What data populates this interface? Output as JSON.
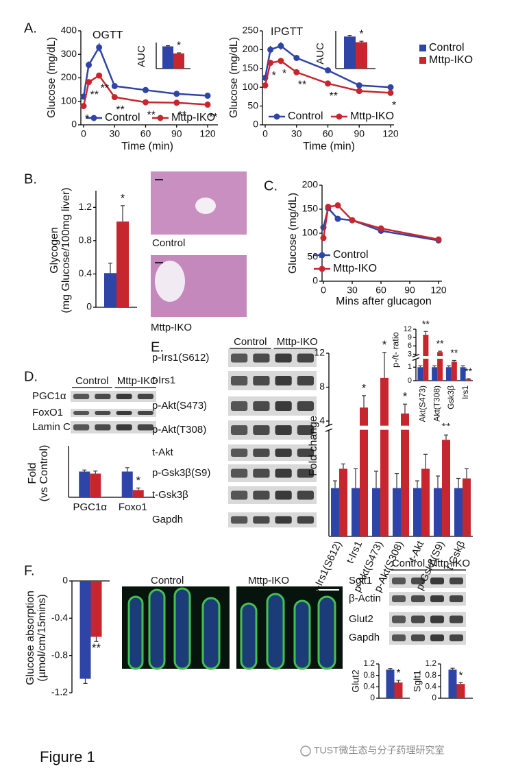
{
  "labels": {
    "panels": [
      "A.",
      "B.",
      "C.",
      "D.",
      "E.",
      "F."
    ],
    "histology": [
      "Control",
      "Mttp-IKO"
    ],
    "d_blot": {
      "groups": [
        "Control",
        "Mttp-IKO"
      ],
      "rows": [
        "PGC1α",
        "FoxO1",
        "Lamin C"
      ]
    },
    "e_blot": {
      "groups": [
        "Control",
        "Mttp-IKO"
      ],
      "rows": [
        "p-Irs1(S612)",
        "t-Irs1",
        "p-Akt(S473)",
        "p-Akt(T308)",
        "t-Akt",
        "p-Gsk3β(S9)",
        "t-Gsk3β",
        "Gapdh"
      ]
    },
    "f_images": [
      "Control",
      "Mttp-IKO"
    ],
    "f_blot": {
      "groups": [
        "Control",
        "Mttp-IKO"
      ],
      "rows": [
        "Sglt1",
        "β-Actin",
        "Glut2",
        "Gapdh"
      ]
    },
    "caption": "Figure 1",
    "watermark": "TUST微生态与分子药理研究室"
  },
  "chart_data": [
    {
      "type": "line",
      "title": "OGTT",
      "xlabel": "Time (min)",
      "ylabel": "Glucose (mg/dL)",
      "x": [
        0,
        5,
        15,
        30,
        60,
        90,
        120
      ],
      "xlim": [
        0,
        120
      ],
      "xticks": [
        0,
        30,
        60,
        90,
        120
      ],
      "ylim": [
        0,
        400
      ],
      "yticks": [
        0,
        100,
        200,
        300,
        400
      ],
      "legend": "bottom",
      "series": [
        {
          "name": "Control",
          "color": "#2e44a6",
          "values": [
            120,
            255,
            330,
            165,
            148,
            132,
            124
          ],
          "errors": [
            8,
            15,
            18,
            8,
            6,
            6,
            6
          ]
        },
        {
          "name": "Mttp-IKO",
          "color": "#c8262f",
          "values": [
            80,
            182,
            210,
            118,
            96,
            94,
            86
          ],
          "errors": [
            6,
            10,
            12,
            6,
            5,
            5,
            5
          ],
          "annotations": [
            "*",
            "**",
            "**",
            "**",
            "**",
            "**",
            "**"
          ]
        }
      ]
    },
    {
      "type": "bar",
      "ylabel": "AUC",
      "categories": [
        null
      ],
      "ylim": [
        0,
        24
      ],
      "legend": "figure",
      "series": [
        {
          "name": "Control",
          "color": "#2e44a6",
          "values": [
            20.5
          ],
          "errors": [
            0.6
          ]
        },
        {
          "name": "Mttp-IKO",
          "color": "#c8262f",
          "values": [
            14
          ],
          "errors": [
            0.5
          ],
          "annotations": [
            "*"
          ]
        }
      ]
    },
    {
      "type": "line",
      "title": "IPGTT",
      "xlabel": "Time (min)",
      "ylabel": "Glucose (mg/dL)",
      "x": [
        0,
        5,
        15,
        30,
        60,
        90,
        120
      ],
      "xlim": [
        0,
        120
      ],
      "xticks": [
        0,
        30,
        60,
        90,
        120
      ],
      "ylim": [
        0,
        250
      ],
      "yticks": [
        0,
        50,
        100,
        150,
        200,
        250
      ],
      "legend": "bottom",
      "series": [
        {
          "name": "Control",
          "color": "#2e44a6",
          "values": [
            125,
            200,
            210,
            178,
            145,
            105,
            100
          ],
          "errors": [
            8,
            10,
            10,
            7,
            6,
            5,
            5
          ]
        },
        {
          "name": "Mttp-IKO",
          "color": "#c8262f",
          "values": [
            105,
            165,
            170,
            140,
            110,
            90,
            85
          ],
          "errors": [
            6,
            8,
            8,
            6,
            5,
            5,
            5
          ],
          "annotations": [
            null,
            "*",
            "*",
            "**",
            "**",
            null,
            "*"
          ]
        }
      ]
    },
    {
      "type": "bar",
      "ylabel": "AUC",
      "categories": [
        null
      ],
      "ylim": [
        0,
        20
      ],
      "series": [
        {
          "name": "Control",
          "color": "#2e44a6",
          "values": [
            17
          ],
          "errors": [
            0.6
          ]
        },
        {
          "name": "Mttp-IKO",
          "color": "#c8262f",
          "values": [
            14
          ],
          "errors": [
            0.5
          ],
          "annotations": [
            "*"
          ]
        }
      ]
    },
    {
      "type": "bar",
      "ylabel": [
        "Glycogen",
        "(mg Glucose/100mg liver)"
      ],
      "categories": [
        null
      ],
      "ylim": [
        0,
        1.4
      ],
      "yticks": [
        0,
        0.4,
        0.8,
        1.2
      ],
      "series": [
        {
          "name": "Control",
          "color": "#2e44a6",
          "values": [
            0.41
          ],
          "errors": [
            0.12
          ]
        },
        {
          "name": "Mttp-IKO",
          "color": "#c8262f",
          "values": [
            1.03
          ],
          "errors": [
            0.19
          ],
          "annotations": [
            "*"
          ]
        }
      ]
    },
    {
      "type": "line",
      "xlabel": "Mins after glucagon",
      "ylabel": "Glucose (mg/dL)",
      "x": [
        0,
        5,
        15,
        30,
        60,
        120
      ],
      "xlim": [
        0,
        120
      ],
      "xticks": [
        0,
        30,
        60,
        90,
        120
      ],
      "ylim": [
        0,
        200
      ],
      "yticks": [
        0,
        50,
        100,
        150,
        200
      ],
      "legend": "inside",
      "series": [
        {
          "name": "Control",
          "color": "#2e44a6",
          "values": [
            112,
            152,
            130,
            127,
            105,
            85
          ]
        },
        {
          "name": "Mttp-IKO",
          "color": "#c8262f",
          "values": [
            90,
            155,
            158,
            127,
            110,
            87
          ]
        }
      ]
    },
    {
      "type": "bar",
      "ylabel": [
        "Fold",
        "(vs Control)"
      ],
      "categories": [
        "PGC1α",
        "Foxo1"
      ],
      "ylim": [
        0,
        2
      ],
      "series": [
        {
          "name": "Control",
          "color": "#2e44a6",
          "values": [
            1.0,
            1.0
          ],
          "errors": [
            0.06,
            0.15
          ]
        },
        {
          "name": "Mttp-IKO",
          "color": "#c8262f",
          "values": [
            0.92,
            0.28
          ],
          "errors": [
            0.1,
            0.08
          ],
          "annotations": [
            null,
            "*"
          ]
        }
      ]
    },
    {
      "type": "bar",
      "ylabel": "Fold change",
      "categories": [
        "p-Irs1(S612)",
        "t-Irs1",
        "p-Akt(S473)",
        "p-Akt(S308)",
        "t-Akt",
        "p-Gskβ(S9)",
        "t-Gskβ"
      ],
      "ylim": [
        0,
        12
      ],
      "axis_break": [
        2.2,
        3.5
      ],
      "yticks": [
        4,
        8,
        12
      ],
      "series": [
        {
          "name": "Control",
          "color": "#2e44a6",
          "values": [
            1,
            1,
            1,
            1,
            1,
            1,
            1
          ],
          "errors": [
            0.15,
            0.4,
            0.35,
            0.3,
            0.15,
            0.25,
            0.2
          ]
        },
        {
          "name": "Mttp-IKO",
          "color": "#c8262f",
          "values": [
            1.4,
            5.6,
            9.1,
            4.9,
            1.4,
            2.0,
            1.2
          ],
          "errors": [
            0.1,
            1.4,
            3,
            1.1,
            0.3,
            0.1,
            0.2
          ],
          "annotations": [
            null,
            "*",
            "*",
            "*",
            null,
            "**",
            null
          ]
        }
      ]
    },
    {
      "type": "bar",
      "ylabel": "p-/t- ratio",
      "categories": [
        "Akt(S473)",
        "Akt(T308)",
        "Gsk3β",
        "Irs1"
      ],
      "ylim": [
        0,
        12
      ],
      "axis_break": [
        1.6,
        2.5
      ],
      "yticks": [
        0,
        1,
        3,
        6,
        9,
        12
      ],
      "series": [
        {
          "name": "Control",
          "color": "#2e44a6",
          "values": [
            1,
            1,
            1,
            1
          ],
          "errors": [
            0.1,
            0.1,
            0.1,
            0.1
          ]
        },
        {
          "name": "Mttp-IKO",
          "color": "#c8262f",
          "values": [
            10,
            3.8,
            1.4,
            0.1
          ],
          "errors": [
            1.2,
            0.3,
            0.1,
            0.05
          ],
          "annotations": [
            "**",
            "**",
            "**",
            "**"
          ]
        }
      ]
    },
    {
      "type": "bar",
      "ylabel": [
        "Glucose absorption",
        "(µmol/cm/15mins)"
      ],
      "categories": [
        null
      ],
      "ylim": [
        -1.2,
        0
      ],
      "yticks": [
        0,
        -0.4,
        -0.8,
        -1.2
      ],
      "series": [
        {
          "name": "Control",
          "color": "#2e44a6",
          "values": [
            -1.05
          ],
          "errors": [
            0.05
          ]
        },
        {
          "name": "Mttp-IKO",
          "color": "#c8262f",
          "values": [
            -0.6
          ],
          "errors": [
            0.05
          ],
          "annotations": [
            "**"
          ]
        }
      ]
    },
    {
      "type": "bar",
      "ylabel": "Glut2",
      "categories": [
        null
      ],
      "ylim": [
        0,
        1.2
      ],
      "yticks": [
        0,
        0.4,
        0.8,
        1.2
      ],
      "series": [
        {
          "name": "Control",
          "color": "#2e44a6",
          "values": [
            1.0
          ],
          "errors": [
            0.04
          ]
        },
        {
          "name": "Mttp-IKO",
          "color": "#c8262f",
          "values": [
            0.55
          ],
          "errors": [
            0.08
          ],
          "annotations": [
            "*"
          ]
        }
      ]
    },
    {
      "type": "bar",
      "ylabel": "Sglt1",
      "categories": [
        null
      ],
      "ylim": [
        0,
        1.2
      ],
      "yticks": [
        0,
        0.4,
        0.8,
        1.2
      ],
      "series": [
        {
          "name": "Control",
          "color": "#2e44a6",
          "values": [
            1.0
          ],
          "errors": [
            0.05
          ]
        },
        {
          "name": "Mttp-IKO",
          "color": "#c8262f",
          "values": [
            0.5
          ],
          "errors": [
            0.05
          ],
          "annotations": [
            "*"
          ]
        }
      ]
    }
  ]
}
